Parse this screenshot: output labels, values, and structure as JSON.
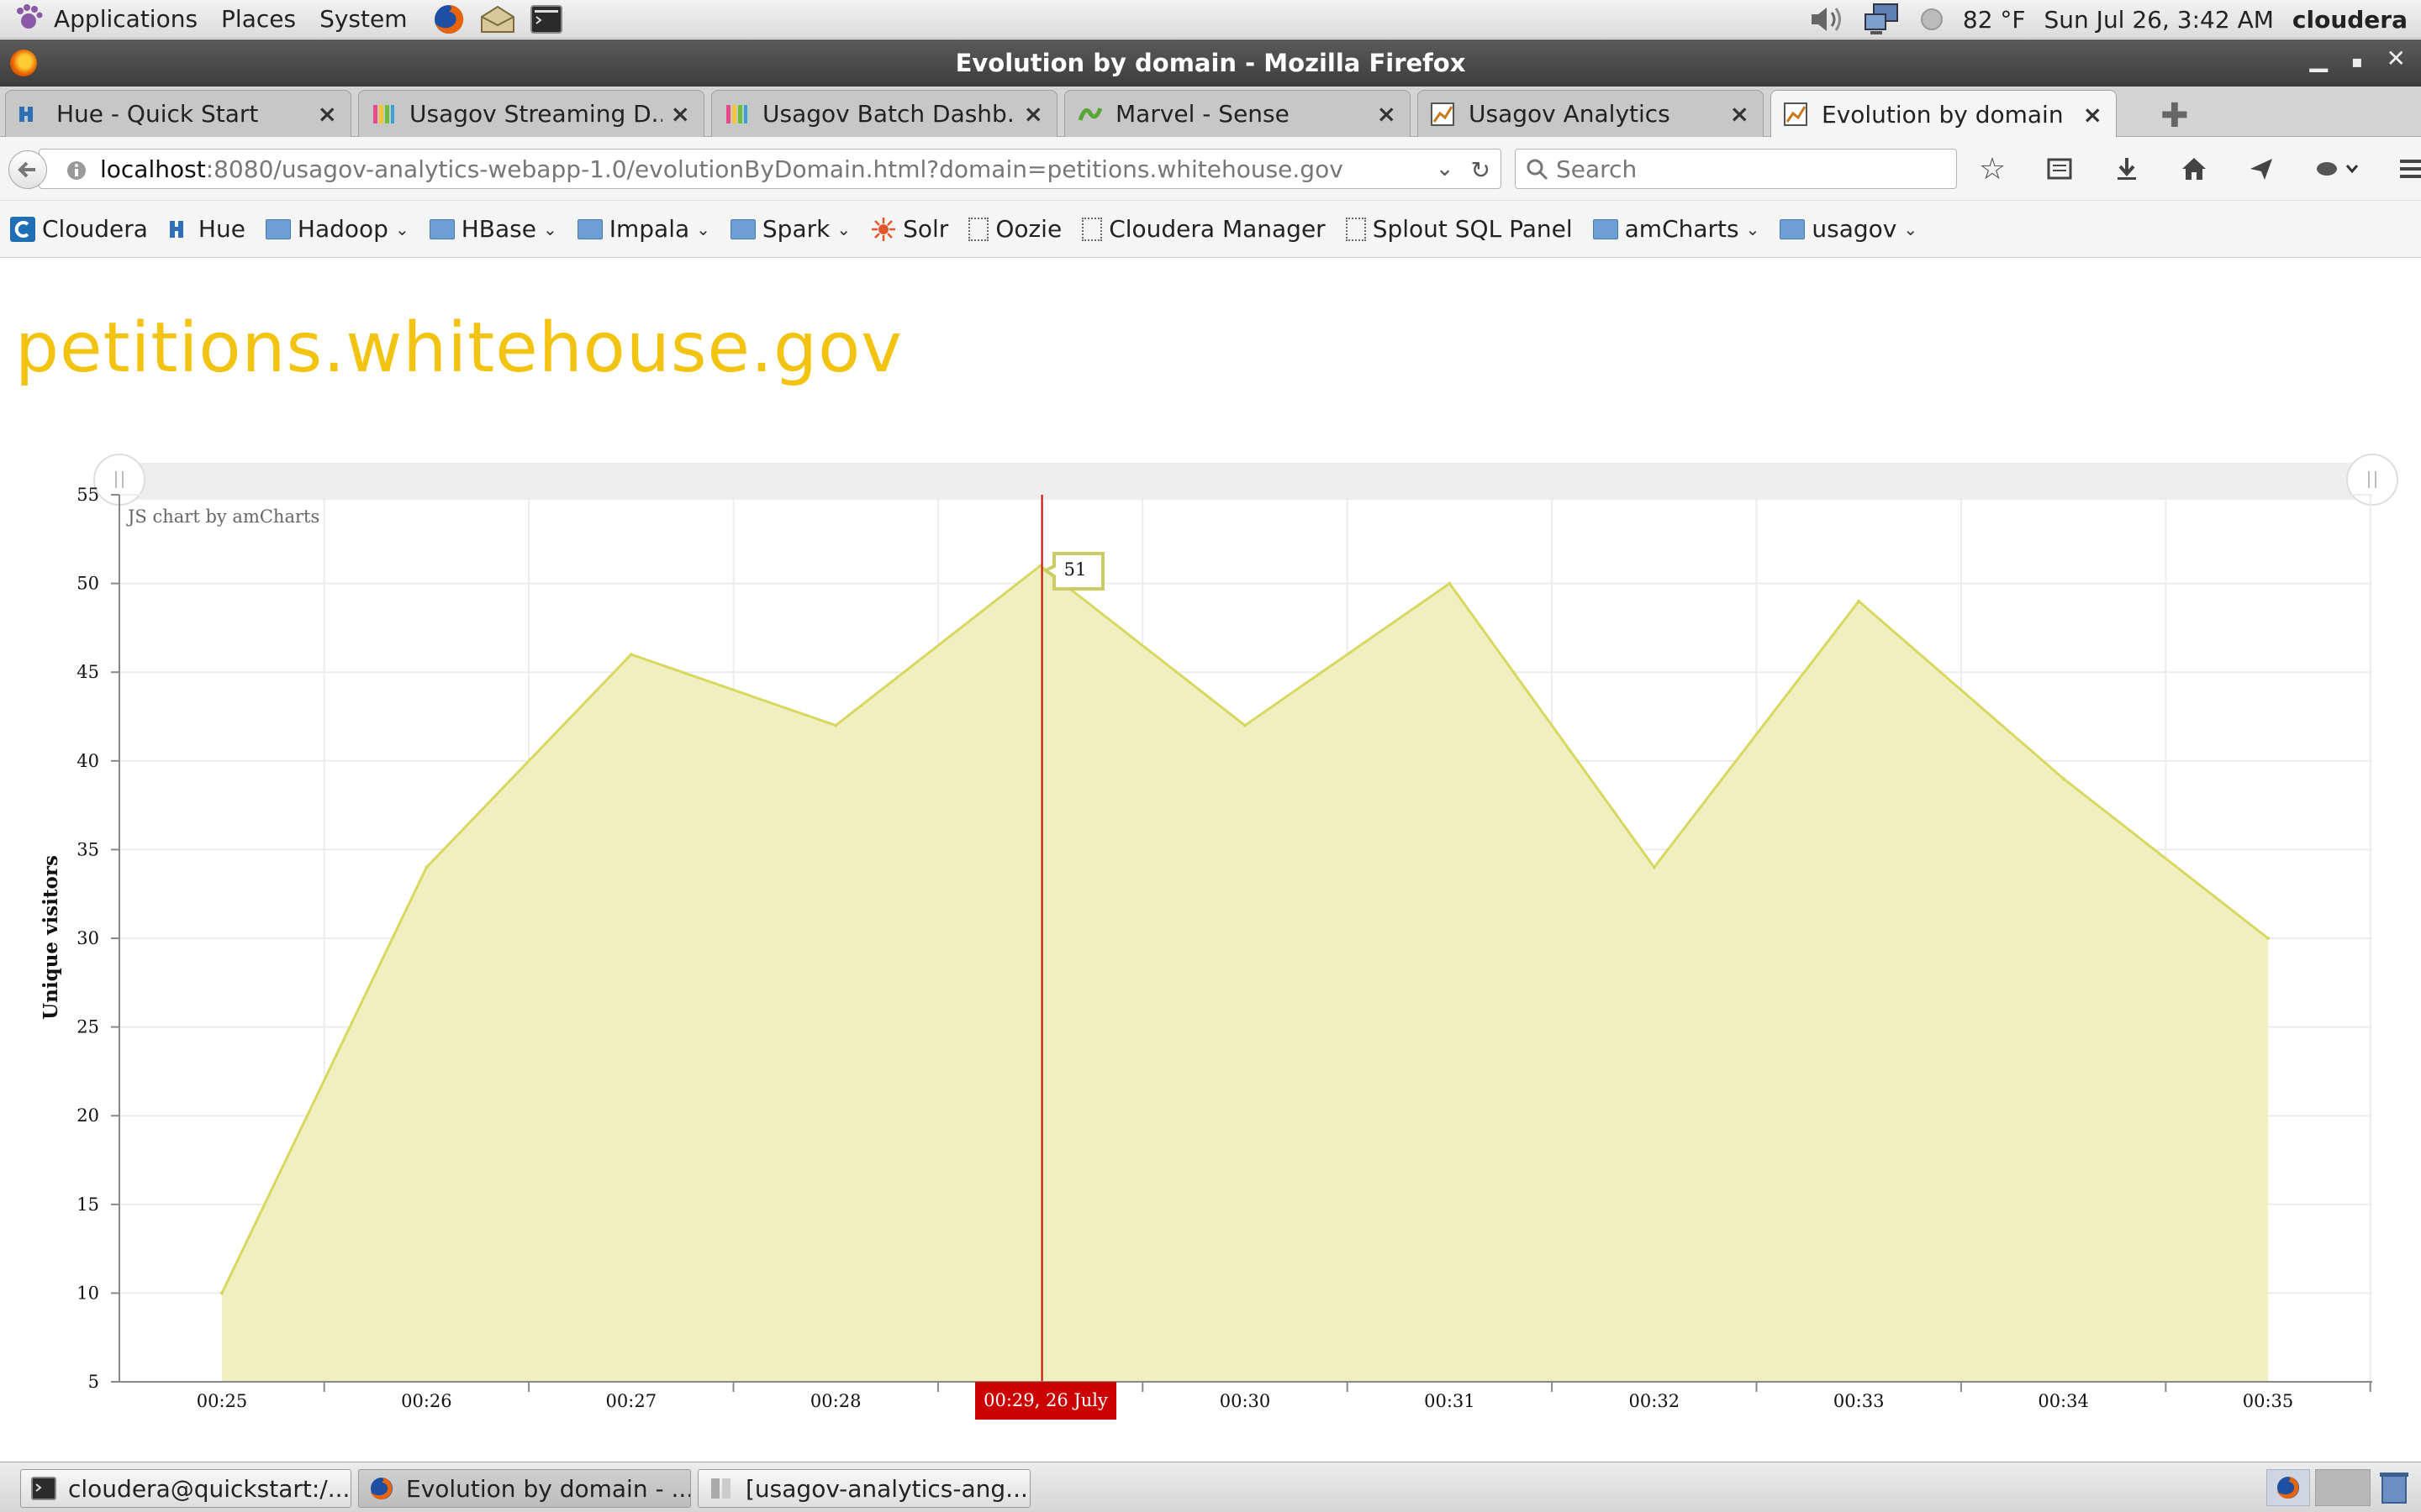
{
  "panel": {
    "applications": "Applications",
    "places": "Places",
    "system": "System",
    "weather": "82 °F",
    "datetime": "Sun Jul 26,  3:42 AM",
    "user": "cloudera"
  },
  "window": {
    "title": "Evolution by domain - Mozilla Firefox"
  },
  "tabs": [
    {
      "label": "Hue - Quick Start"
    },
    {
      "label": "Usagov Streaming D..."
    },
    {
      "label": "Usagov Batch Dashb..."
    },
    {
      "label": "Marvel - Sense"
    },
    {
      "label": "Usagov Analytics"
    },
    {
      "label": "Evolution by domain"
    }
  ],
  "navbar": {
    "url_host": "localhost",
    "url_rest": ":8080/usagov-analytics-webapp-1.0/evolutionByDomain.html?domain=petitions.whitehouse.gov",
    "search_placeholder": "Search"
  },
  "bookmarks": [
    {
      "label": "Cloudera",
      "kind": "cloudera"
    },
    {
      "label": "Hue",
      "kind": "hue"
    },
    {
      "label": "Hadoop",
      "kind": "folder"
    },
    {
      "label": "HBase",
      "kind": "folder"
    },
    {
      "label": "Impala",
      "kind": "folder"
    },
    {
      "label": "Spark",
      "kind": "folder"
    },
    {
      "label": "Solr",
      "kind": "solr"
    },
    {
      "label": "Oozie",
      "kind": "page"
    },
    {
      "label": "Cloudera Manager",
      "kind": "page"
    },
    {
      "label": "Splout SQL Panel",
      "kind": "page"
    },
    {
      "label": "amCharts",
      "kind": "folder"
    },
    {
      "label": "usagov",
      "kind": "folder"
    }
  ],
  "page": {
    "domain_heading": "petitions.whitehouse.gov",
    "credit": "JS chart by amCharts"
  },
  "chart_data": {
    "type": "area",
    "title": "",
    "xlabel": "",
    "ylabel": "Unique visitors",
    "categories": [
      "00:25",
      "00:26",
      "00:27",
      "00:28",
      "00:29",
      "00:30",
      "00:31",
      "00:32",
      "00:33",
      "00:34",
      "00:35"
    ],
    "values": [
      10,
      34,
      46,
      42,
      51,
      42,
      50,
      34,
      49,
      39,
      30
    ],
    "ylim": [
      5,
      55
    ],
    "yticks": [
      5,
      10,
      15,
      20,
      25,
      30,
      35,
      40,
      45,
      50,
      55
    ],
    "grid": true,
    "cursor": {
      "category_index": 4,
      "balloon": "51",
      "label": "00:29, 26 July"
    },
    "fill_color": "#efefbf",
    "line_color": "#d8d860",
    "cursor_color": "#cc0000"
  },
  "taskbar": [
    {
      "label": "cloudera@quickstart:/..."
    },
    {
      "label": "Evolution by domain - ..."
    },
    {
      "label": "[usagov-analytics-ang..."
    }
  ]
}
